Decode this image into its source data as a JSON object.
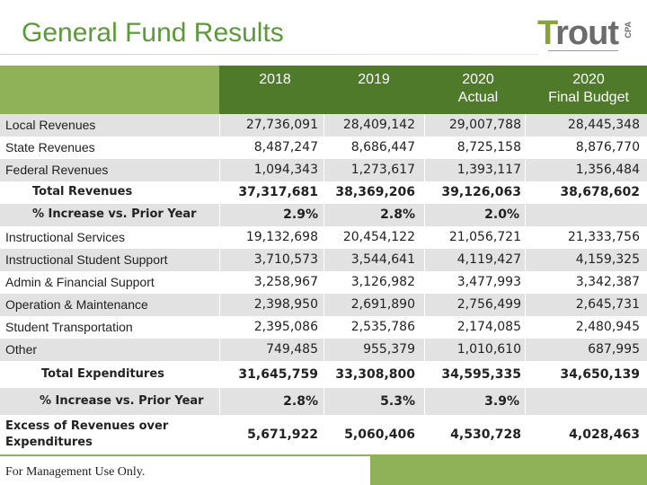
{
  "title": "General Fund Results",
  "logo": {
    "word_first": "T",
    "word_rest": "rout",
    "suffix": "CPA"
  },
  "columns": [
    {
      "line1": "2018",
      "line2": ""
    },
    {
      "line1": "2019",
      "line2": ""
    },
    {
      "line1": "2020",
      "line2": "Actual"
    },
    {
      "line1": "2020",
      "line2": "Final Budget"
    }
  ],
  "rows": [
    {
      "label": "Local Revenues",
      "values": [
        "27,736,091",
        "28,409,142",
        "29,007,788",
        "28,445,348"
      ]
    },
    {
      "label": "State Revenues",
      "values": [
        "8,487,247",
        "8,686,447",
        "8,725,158",
        "8,876,770"
      ]
    },
    {
      "label": "Federal Revenues",
      "values": [
        "1,094,343",
        "1,273,617",
        "1,393,117",
        "1,356,484"
      ]
    },
    {
      "label": "Total Revenues",
      "values": [
        "37,317,681",
        "38,369,206",
        "39,126,063",
        "38,678,602"
      ]
    },
    {
      "label": "% Increase vs. Prior Year",
      "values": [
        "2.9%",
        "2.8%",
        "2.0%",
        ""
      ]
    },
    {
      "label": "Instructional Services",
      "values": [
        "19,132,698",
        "20,454,122",
        "21,056,721",
        "21,333,756"
      ]
    },
    {
      "label": "Instructional Student Support",
      "values": [
        "3,710,573",
        "3,544,641",
        "4,119,427",
        "4,159,325"
      ]
    },
    {
      "label": "Admin & Financial Support",
      "values": [
        "3,258,967",
        "3,126,982",
        "3,477,993",
        "3,342,387"
      ]
    },
    {
      "label": "Operation & Maintenance",
      "values": [
        "2,398,950",
        "2,691,890",
        "2,756,499",
        "2,645,731"
      ]
    },
    {
      "label": "Student Transportation",
      "values": [
        "2,395,086",
        "2,535,786",
        "2,174,085",
        "2,480,945"
      ]
    },
    {
      "label": "Other",
      "values": [
        "749,485",
        "955,379",
        "1,010,610",
        "687,995"
      ]
    },
    {
      "label": "Total Expenditures",
      "values": [
        "31,645,759",
        "33,308,800",
        "34,595,335",
        "34,650,139"
      ]
    },
    {
      "label": "% Increase vs. Prior Year",
      "values": [
        "2.8%",
        "5.3%",
        "3.9%",
        ""
      ]
    },
    {
      "label": "Excess of Revenues over",
      "label2": "Expenditures",
      "values": [
        "5,671,922",
        "5,060,406",
        "4,530,728",
        "4,028,463"
      ]
    }
  ],
  "footer": "For Management Use Only."
}
